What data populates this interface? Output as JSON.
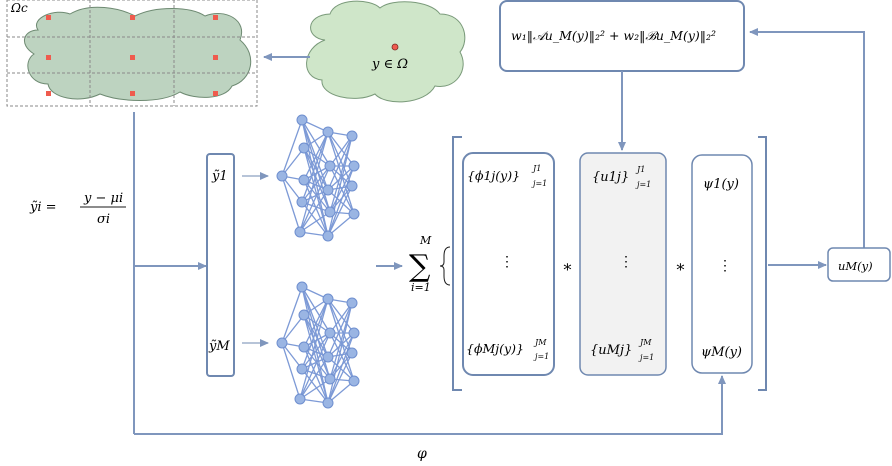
{
  "colors": {
    "arrow": "#7f96bd",
    "box_stroke": "#6f88b0",
    "cloud_fill": "#cfe6c9",
    "domain_fill": "#bdd3c0",
    "node": "#9ab5e3",
    "node_stroke": "#6f8fcf",
    "red_point": "#ef5b4e",
    "grid": "#8a8a8a",
    "shaded": "#f2f2f2"
  },
  "labels": {
    "omega_c": "Ωc",
    "y_in_omega": "y ∈ Ω",
    "loss": "w₁‖𝒜u_M(y)‖₂² + w₂‖ℬu_M(y)‖₂²",
    "normalization_lhs": "ỹi =",
    "normalization_num": "y − μi",
    "normalization_den": "σi",
    "y_tilde_1": "ỹ1",
    "y_tilde_M": "ỹM",
    "sum_top": "M",
    "sum_symbol": "∑",
    "sum_bottom": "i=1",
    "phi_top": "{ϕ1j(y)}",
    "phi_top_sup": "J1",
    "phi_top_sub": "j=1",
    "phi_bottom": "{ϕMj(y)}",
    "phi_bottom_sup": "JM",
    "phi_bottom_sub": "j=1",
    "u_top": "{u1j}",
    "u_top_sup": "J1",
    "u_top_sub": "j=1",
    "u_bottom": "{uMj}",
    "u_bottom_sup": "JM",
    "u_bottom_sub": "j=1",
    "psi_top": "ψ1(y)",
    "psi_bottom": "ψM(y)",
    "vdots": "⋮",
    "star": "∗",
    "output": "uM(y)",
    "varphi": "φ"
  }
}
